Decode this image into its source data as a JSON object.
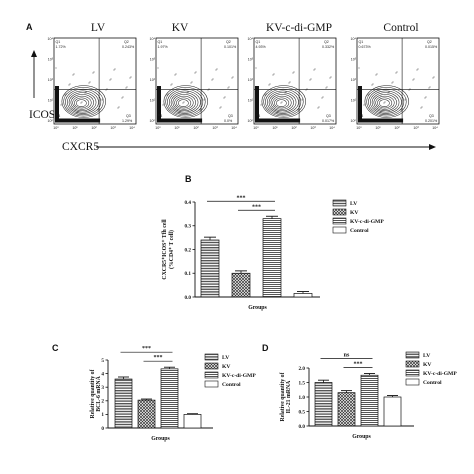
{
  "panel_A": {
    "letter": "A",
    "y_axis_label": "ICOS",
    "x_axis_label": "CXCR5",
    "plots": [
      {
        "title": "LV",
        "q1": "1.72%",
        "q2": "0.243%",
        "q3": "1.29%",
        "q4": "96.7%"
      },
      {
        "title": "KV",
        "q1": "1.97%",
        "q2": "0.101%",
        "q3": "0.0%",
        "q4": "97.9%"
      },
      {
        "title": "KV-c-di-GMP",
        "q1": "4.93%",
        "q2": "0.332%",
        "q3": "0.017%",
        "q4": "94.7%"
      },
      {
        "title": "Control",
        "q1": "0.673%",
        "q2": "0.015%",
        "q3": "0.201%",
        "q4": "99.1%"
      }
    ],
    "quadrant_labels": [
      "Q1",
      "Q2",
      "Q3",
      "Q4"
    ],
    "axis_ticks": [
      "10⁰",
      "10¹",
      "10²",
      "10³",
      "10⁴"
    ]
  },
  "patterns": {
    "legend_fills": [
      "hstripe",
      "diamond",
      "hstripe-fine",
      "solid-white"
    ]
  },
  "chart_data": [
    {
      "panel": "B",
      "type": "bar",
      "categories": [
        "LV",
        "KV",
        "KV-c-di-GMP",
        "Control"
      ],
      "values": [
        0.24,
        0.1,
        0.33,
        0.015
      ],
      "errors": [
        0.012,
        0.01,
        0.01,
        0.008
      ],
      "xlabel": "Groups",
      "ylabel_lines": [
        "CXCR5⁺ICOS⁺ Tfh cell",
        "(%CD4⁺ T cell)"
      ],
      "ylim": [
        0.0,
        0.4
      ],
      "yticks": [
        "0.0",
        "0.1",
        "0.2",
        "0.3",
        "0.4"
      ],
      "legend": [
        "LV",
        "KV",
        "KV-c-di-GMP",
        "Control"
      ],
      "legend_position": "right",
      "significance": [
        {
          "from": 0,
          "to": 2,
          "label": "***"
        },
        {
          "from": 1,
          "to": 2,
          "label": "***"
        }
      ]
    },
    {
      "panel": "C",
      "type": "bar",
      "categories": [
        "LV",
        "KV",
        "KV-c-di-GMP",
        "Control"
      ],
      "values": [
        3.6,
        2.05,
        4.35,
        1.0
      ],
      "errors": [
        0.15,
        0.08,
        0.12,
        0.05
      ],
      "xlabel": "Groups",
      "ylabel_lines": [
        "Relative quantity of",
        "BCL-6 mRNA"
      ],
      "ylim": [
        0,
        5
      ],
      "yticks": [
        "0",
        "1",
        "2",
        "3",
        "4",
        "5"
      ],
      "legend": [
        "LV",
        "KV",
        "KV-c-di-GMP",
        "Control"
      ],
      "legend_position": "right",
      "significance": [
        {
          "from": 0,
          "to": 2,
          "label": "***"
        },
        {
          "from": 1,
          "to": 2,
          "label": "***"
        }
      ]
    },
    {
      "panel": "D",
      "type": "bar",
      "categories": [
        "LV",
        "KV",
        "KV-c-di-GMP",
        "Control"
      ],
      "values": [
        1.5,
        1.15,
        1.75,
        1.0
      ],
      "errors": [
        0.08,
        0.07,
        0.06,
        0.05
      ],
      "xlabel": "Groups",
      "ylabel_lines": [
        "Relative quantity of",
        "IL-21 mRNA"
      ],
      "ylim": [
        0.0,
        2.0
      ],
      "yticks": [
        "0.0",
        "0.5",
        "1.0",
        "1.5",
        "2.0"
      ],
      "legend": [
        "LV",
        "KV",
        "KV-c-di-GMP",
        "Control"
      ],
      "legend_position": "right",
      "significance": [
        {
          "from": 0,
          "to": 2,
          "label": "ns"
        },
        {
          "from": 1,
          "to": 2,
          "label": "***"
        }
      ]
    }
  ]
}
